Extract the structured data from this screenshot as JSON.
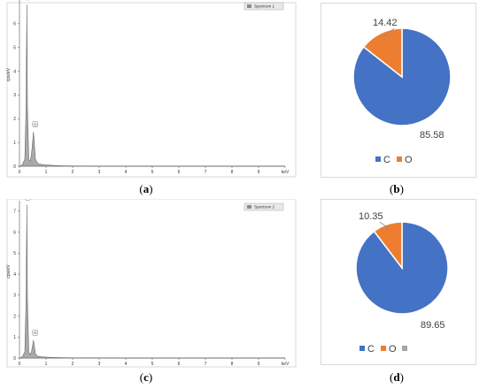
{
  "panels": [
    {
      "label_open": "(",
      "label_letter": "a",
      "label_close": ")",
      "chart_data": {
        "type": "area",
        "title": "",
        "xlabel": "keV",
        "ylabel": "cps/eV",
        "xlim": [
          0,
          10
        ],
        "ylim": [
          0,
          7
        ],
        "x_ticks": [
          "0",
          "1",
          "2",
          "3",
          "4",
          "5",
          "6",
          "7",
          "8",
          "9",
          "keV"
        ],
        "y_ticks": [
          "0",
          "1",
          "2",
          "3",
          "4",
          "5",
          "6"
        ],
        "legend": "Spectrum 1",
        "legend_position": "top-right",
        "series": [
          {
            "name": "Spectrum 1",
            "x": [
              0.0,
              0.1,
              0.2,
              0.25,
              0.277,
              0.3,
              0.35,
              0.4,
              0.45,
              0.5,
              0.525,
              0.55,
              0.6,
              0.7,
              0.9,
              1.2,
              1.5,
              2.0,
              3.0,
              5.0,
              7.0,
              10.0
            ],
            "values": [
              0.0,
              0.05,
              0.3,
              2.5,
              6.8,
              2.5,
              0.3,
              0.2,
              0.5,
              1.1,
              1.45,
              1.1,
              0.3,
              0.1,
              0.06,
              0.04,
              0.02,
              0.01,
              0.005,
              0.0,
              0.0,
              0.0
            ]
          }
        ],
        "peaks": [
          {
            "label": "C",
            "x": 0.277,
            "y": 6.8
          },
          {
            "label": "O",
            "x": 0.525,
            "y": 1.45
          }
        ]
      }
    },
    {
      "label_open": "(",
      "label_letter": "b",
      "label_close": ")",
      "chart_data": {
        "type": "pie",
        "categories": [
          "C",
          "O"
        ],
        "values": [
          85.58,
          14.42
        ],
        "value_labels": [
          "85.58",
          "14.42"
        ],
        "colors": [
          "#4472C4",
          "#ED7D31"
        ],
        "legend_position": "bottom"
      }
    },
    {
      "label_open": "(",
      "label_letter": "c",
      "label_close": ")",
      "chart_data": {
        "type": "area",
        "title": "",
        "xlabel": "keV",
        "ylabel": "cps/eV",
        "xlim": [
          0,
          10
        ],
        "ylim": [
          0,
          7.5
        ],
        "x_ticks": [
          "0",
          "1",
          "2",
          "3",
          "4",
          "5",
          "6",
          "7",
          "8",
          "9",
          "keV"
        ],
        "y_ticks": [
          "0",
          "1",
          "2",
          "3",
          "4",
          "5",
          "6",
          "7"
        ],
        "legend": "Spectrum 2",
        "legend_position": "top-right",
        "series": [
          {
            "name": "Spectrum 2",
            "x": [
              0.0,
              0.1,
              0.2,
              0.25,
              0.277,
              0.3,
              0.35,
              0.4,
              0.45,
              0.5,
              0.525,
              0.55,
              0.6,
              0.7,
              0.9,
              1.2,
              1.5,
              2.0,
              3.0,
              5.0,
              7.0,
              10.0
            ],
            "values": [
              0.0,
              0.05,
              0.3,
              2.8,
              7.3,
              2.8,
              0.3,
              0.15,
              0.3,
              0.65,
              0.85,
              0.65,
              0.2,
              0.08,
              0.05,
              0.03,
              0.02,
              0.01,
              0.005,
              0.0,
              0.0,
              0.0
            ]
          }
        ],
        "peaks": [
          {
            "label": "C",
            "x": 0.277,
            "y": 7.3
          },
          {
            "label": "O",
            "x": 0.525,
            "y": 0.85
          }
        ]
      }
    },
    {
      "label_open": "(",
      "label_letter": "d",
      "label_close": ")",
      "chart_data": {
        "type": "pie",
        "categories": [
          "C",
          "O",
          ""
        ],
        "values": [
          89.65,
          10.35,
          0
        ],
        "value_labels": [
          "89.65",
          "10.35",
          ""
        ],
        "colors": [
          "#4472C4",
          "#ED7D31",
          "#A5A5A5"
        ],
        "legend_position": "bottom"
      }
    }
  ]
}
